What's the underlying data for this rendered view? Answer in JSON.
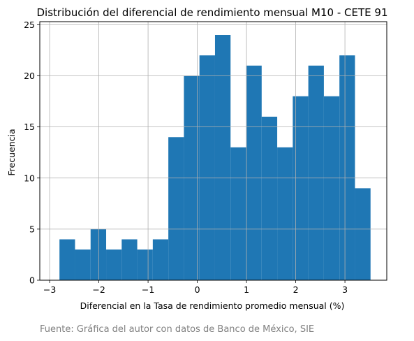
{
  "chart_data": {
    "type": "bar",
    "title": "Distribución del diferencial de rendimiento mensual M10 - CETE 91",
    "xlabel": "Diferencial en la Tasa de rendimiento promedio mensual (%)",
    "ylabel": "Frecuencia",
    "bin_start": -2.8,
    "bin_width": 0.316,
    "values": [
      4,
      3,
      5,
      3,
      4,
      3,
      4,
      14,
      20,
      22,
      24,
      13,
      21,
      16,
      13,
      18,
      21,
      18,
      22,
      9
    ],
    "xlim": [
      -3.2,
      3.85
    ],
    "ylim": [
      0,
      25.3
    ],
    "xticks": [
      -3,
      -2,
      -1,
      0,
      1,
      2,
      3
    ],
    "xtick_labels": [
      "−3",
      "−2",
      "−1",
      "0",
      "1",
      "2",
      "3"
    ],
    "yticks": [
      0,
      5,
      10,
      15,
      20,
      25
    ],
    "ytick_labels": [
      "0",
      "5",
      "10",
      "15",
      "20",
      "25"
    ],
    "grid": true,
    "bar_color": "#1f77b4",
    "grid_color": "#b0b0b0"
  },
  "source_note": "Fuente: Gráfica del autor con datos de Banco de México, SIE"
}
